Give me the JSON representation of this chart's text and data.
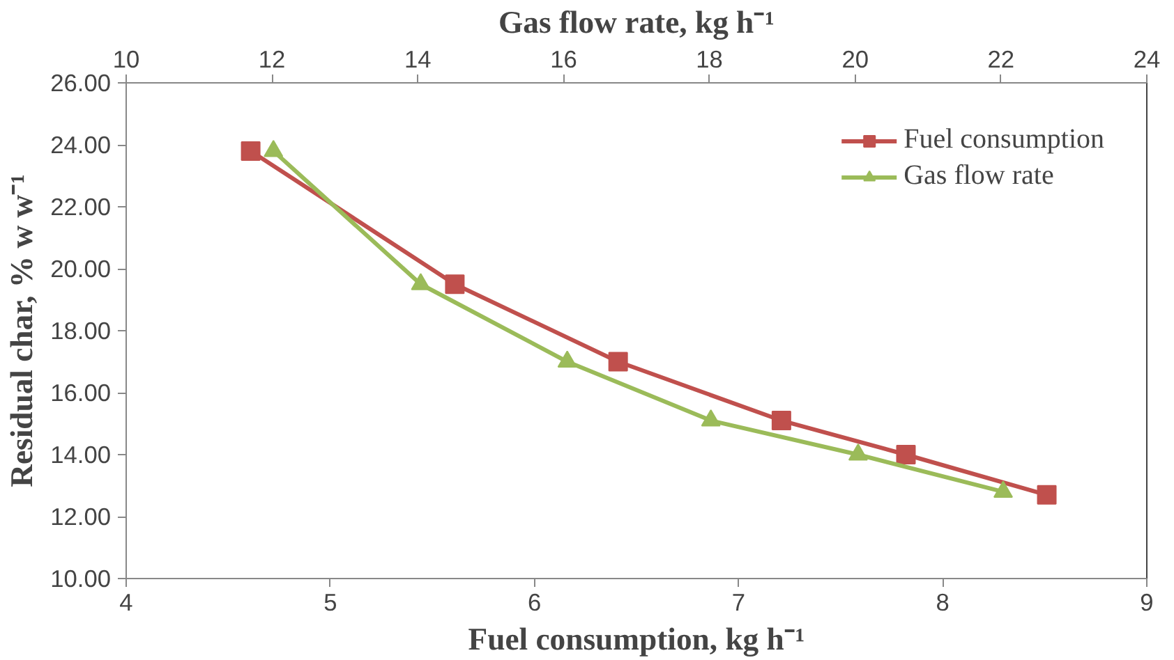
{
  "chart_data": {
    "type": "line",
    "xlabel": "Fuel consumption, kg h⁻¹",
    "x2label": "Gas flow rate, kg h⁻¹",
    "ylabel": "Residual char, % w w⁻¹",
    "xlim": [
      4,
      9
    ],
    "xticks": [
      4,
      5,
      6,
      7,
      8,
      9
    ],
    "x2lim": [
      10,
      24
    ],
    "x2ticks": [
      10,
      12,
      14,
      16,
      18,
      20,
      22,
      24
    ],
    "ylim": [
      10,
      26
    ],
    "yticks": [
      {
        "value": 10,
        "label": "10.00"
      },
      {
        "value": 12,
        "label": "12.00"
      },
      {
        "value": 14,
        "label": "14.00"
      },
      {
        "value": 16,
        "label": "16.00"
      },
      {
        "value": 18,
        "label": "18.00"
      },
      {
        "value": 20,
        "label": "20.00"
      },
      {
        "value": 22,
        "label": "22.00"
      },
      {
        "value": 24,
        "label": "24.00"
      },
      {
        "value": 26,
        "label": "26.00"
      }
    ],
    "grid": false,
    "legend": "top right",
    "series": [
      {
        "name": "Fuel consumption",
        "color": "#c0504d",
        "marker": "square",
        "x": [
          4.61,
          5.61,
          6.41,
          7.21,
          7.82,
          8.51
        ],
        "values": [
          23.8,
          19.5,
          17.0,
          15.1,
          14.0,
          12.7
        ]
      },
      {
        "name": "Gas flow rate",
        "color": "#9bbb59",
        "marker": "triangle",
        "axis": "x2",
        "x": [
          12.02,
          14.04,
          16.05,
          18.02,
          20.04,
          22.03
        ],
        "values": [
          23.8,
          19.5,
          17.0,
          15.1,
          14.0,
          12.8
        ]
      }
    ]
  }
}
